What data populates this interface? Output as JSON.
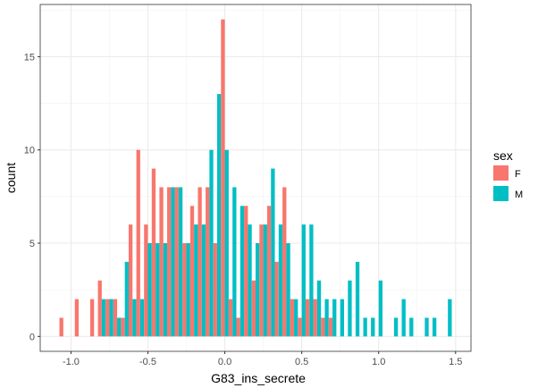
{
  "chart_data": {
    "type": "bar",
    "subtype": "histogram-dodged",
    "title": "",
    "xlabel": "G83_ins_secrete",
    "ylabel": "count",
    "xlim": [
      -1.2,
      1.6
    ],
    "ylim": [
      -0.8,
      17.8
    ],
    "x_ticks": [
      -1.0,
      -0.5,
      0.0,
      0.5,
      1.0,
      1.5
    ],
    "y_ticks": [
      0,
      5,
      10,
      15
    ],
    "x_tick_labels": [
      "-1.0",
      "-0.5",
      "0.0",
      "0.5",
      "1.0",
      "1.5"
    ],
    "y_tick_labels": [
      "0",
      "5",
      "10",
      "15"
    ],
    "bin_width": 0.05,
    "grid": true,
    "legend": {
      "title": "sex",
      "position": "right",
      "entries": [
        {
          "label": "F",
          "color": "#F8766D"
        },
        {
          "label": "M",
          "color": "#00BFC4"
        }
      ]
    },
    "bins": [
      -1.05,
      -1.0,
      -0.95,
      -0.9,
      -0.85,
      -0.8,
      -0.75,
      -0.7,
      -0.65,
      -0.6,
      -0.55,
      -0.5,
      -0.45,
      -0.4,
      -0.35,
      -0.3,
      -0.25,
      -0.2,
      -0.15,
      -0.1,
      -0.05,
      0.0,
      0.05,
      0.1,
      0.15,
      0.2,
      0.25,
      0.3,
      0.35,
      0.4,
      0.45,
      0.5,
      0.55,
      0.6,
      0.65,
      0.7,
      0.75,
      0.8,
      0.85,
      0.9,
      0.95,
      1.0,
      1.05,
      1.1,
      1.15,
      1.2,
      1.25,
      1.3,
      1.35,
      1.4,
      1.45
    ],
    "series": [
      {
        "name": "F",
        "color": "#F8766D",
        "values": [
          1,
          0,
          2,
          0,
          2,
          3,
          2,
          2,
          1,
          6,
          10,
          6,
          9,
          8,
          8,
          8,
          5,
          7,
          8,
          8,
          5,
          17,
          2,
          1,
          7,
          3,
          6,
          7,
          4,
          8,
          2,
          1,
          2,
          2,
          1,
          1,
          0,
          0,
          0,
          0,
          0,
          0,
          0,
          0,
          0,
          0,
          0,
          0,
          0,
          0,
          0
        ]
      },
      {
        "name": "M",
        "color": "#00BFC4",
        "values": [
          0,
          0,
          0,
          0,
          0,
          2,
          2,
          1,
          4,
          2,
          2,
          5,
          5,
          5,
          8,
          8,
          5,
          6,
          6,
          10,
          13,
          10,
          8,
          7,
          6,
          5,
          6,
          9,
          6,
          5,
          2,
          6,
          6,
          3,
          2,
          2,
          2,
          3,
          4,
          1,
          1,
          3,
          0,
          1,
          2,
          1,
          0,
          1,
          1,
          0,
          2
        ]
      }
    ]
  }
}
